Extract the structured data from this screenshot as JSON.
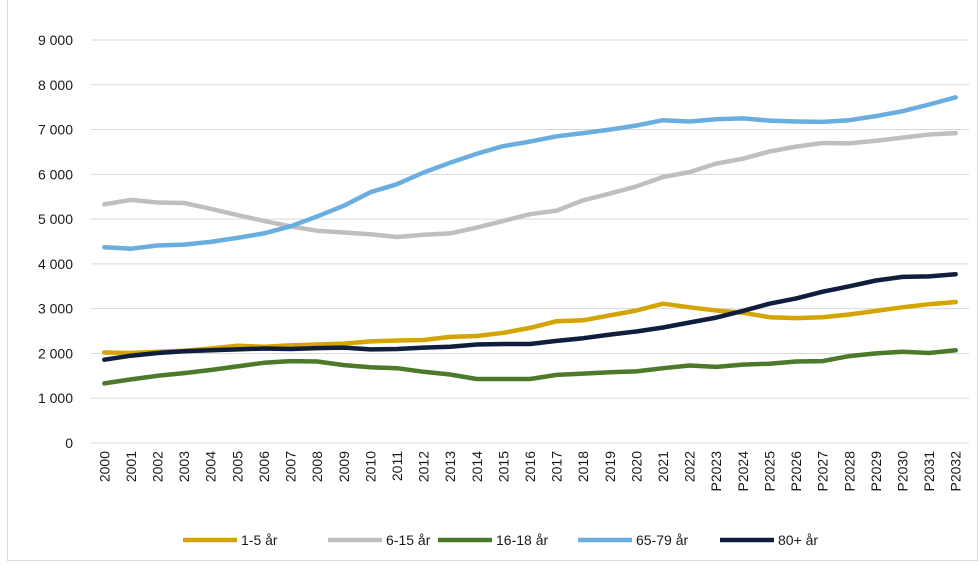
{
  "chart_data": {
    "type": "line",
    "title": "",
    "xlabel": "",
    "ylabel": "",
    "ylim": [
      0,
      9000
    ],
    "yticks": [
      0,
      1000,
      2000,
      3000,
      4000,
      5000,
      6000,
      7000,
      8000,
      9000
    ],
    "ytick_labels": [
      "0",
      "1 000",
      "2 000",
      "3 000",
      "4 000",
      "5 000",
      "6 000",
      "7 000",
      "8 000",
      "9 000"
    ],
    "grid": true,
    "legend_position": "bottom",
    "categories": [
      "2000",
      "2001",
      "2002",
      "2003",
      "2004",
      "2005",
      "2006",
      "2007",
      "2008",
      "2009",
      "2010",
      "2011",
      "2012",
      "2013",
      "2014",
      "2015",
      "2016",
      "2017",
      "2018",
      "2019",
      "2020",
      "2021",
      "2022",
      "P2023",
      "P2024",
      "P2025",
      "P2026",
      "P2027",
      "P2028",
      "P2029",
      "P2030",
      "P2031",
      "P2032"
    ],
    "series": [
      {
        "name": "1-5 år",
        "color": "#d4a400",
        "values": [
          2020,
          2010,
          2040,
          2060,
          2110,
          2170,
          2150,
          2180,
          2200,
          2220,
          2270,
          2290,
          2300,
          2370,
          2390,
          2460,
          2570,
          2720,
          2740,
          2850,
          2960,
          3110,
          3030,
          2960,
          2910,
          2810,
          2790,
          2810,
          2870,
          2950,
          3030,
          3100,
          3150
        ]
      },
      {
        "name": "6-15 år",
        "color": "#bfbfbf",
        "values": [
          5330,
          5430,
          5370,
          5360,
          5230,
          5090,
          4960,
          4840,
          4740,
          4700,
          4660,
          4600,
          4650,
          4680,
          4810,
          4960,
          5110,
          5190,
          5420,
          5570,
          5730,
          5940,
          6050,
          6240,
          6350,
          6510,
          6620,
          6700,
          6690,
          6750,
          6820,
          6890,
          6920
        ]
      },
      {
        "name": "16-18 år",
        "color": "#4d7a2a",
        "values": [
          1330,
          1420,
          1500,
          1560,
          1630,
          1710,
          1790,
          1830,
          1820,
          1740,
          1690,
          1670,
          1590,
          1530,
          1430,
          1430,
          1430,
          1520,
          1550,
          1580,
          1600,
          1670,
          1730,
          1700,
          1750,
          1770,
          1820,
          1830,
          1940,
          2000,
          2040,
          2010,
          2070
        ]
      },
      {
        "name": "65-79 år",
        "color": "#6aaee0",
        "values": [
          4370,
          4340,
          4410,
          4430,
          4490,
          4580,
          4680,
          4840,
          5060,
          5300,
          5600,
          5780,
          6040,
          6260,
          6460,
          6630,
          6730,
          6850,
          6920,
          7000,
          7090,
          7210,
          7180,
          7230,
          7250,
          7200,
          7180,
          7170,
          7210,
          7300,
          7410,
          7560,
          7720
        ]
      },
      {
        "name": "80+ år",
        "color": "#0f1e3c",
        "values": [
          1860,
          1950,
          2010,
          2050,
          2070,
          2090,
          2110,
          2100,
          2120,
          2130,
          2090,
          2100,
          2130,
          2150,
          2200,
          2210,
          2210,
          2280,
          2340,
          2420,
          2490,
          2580,
          2690,
          2800,
          2950,
          3110,
          3230,
          3380,
          3500,
          3630,
          3710,
          3720,
          3770
        ]
      }
    ]
  }
}
